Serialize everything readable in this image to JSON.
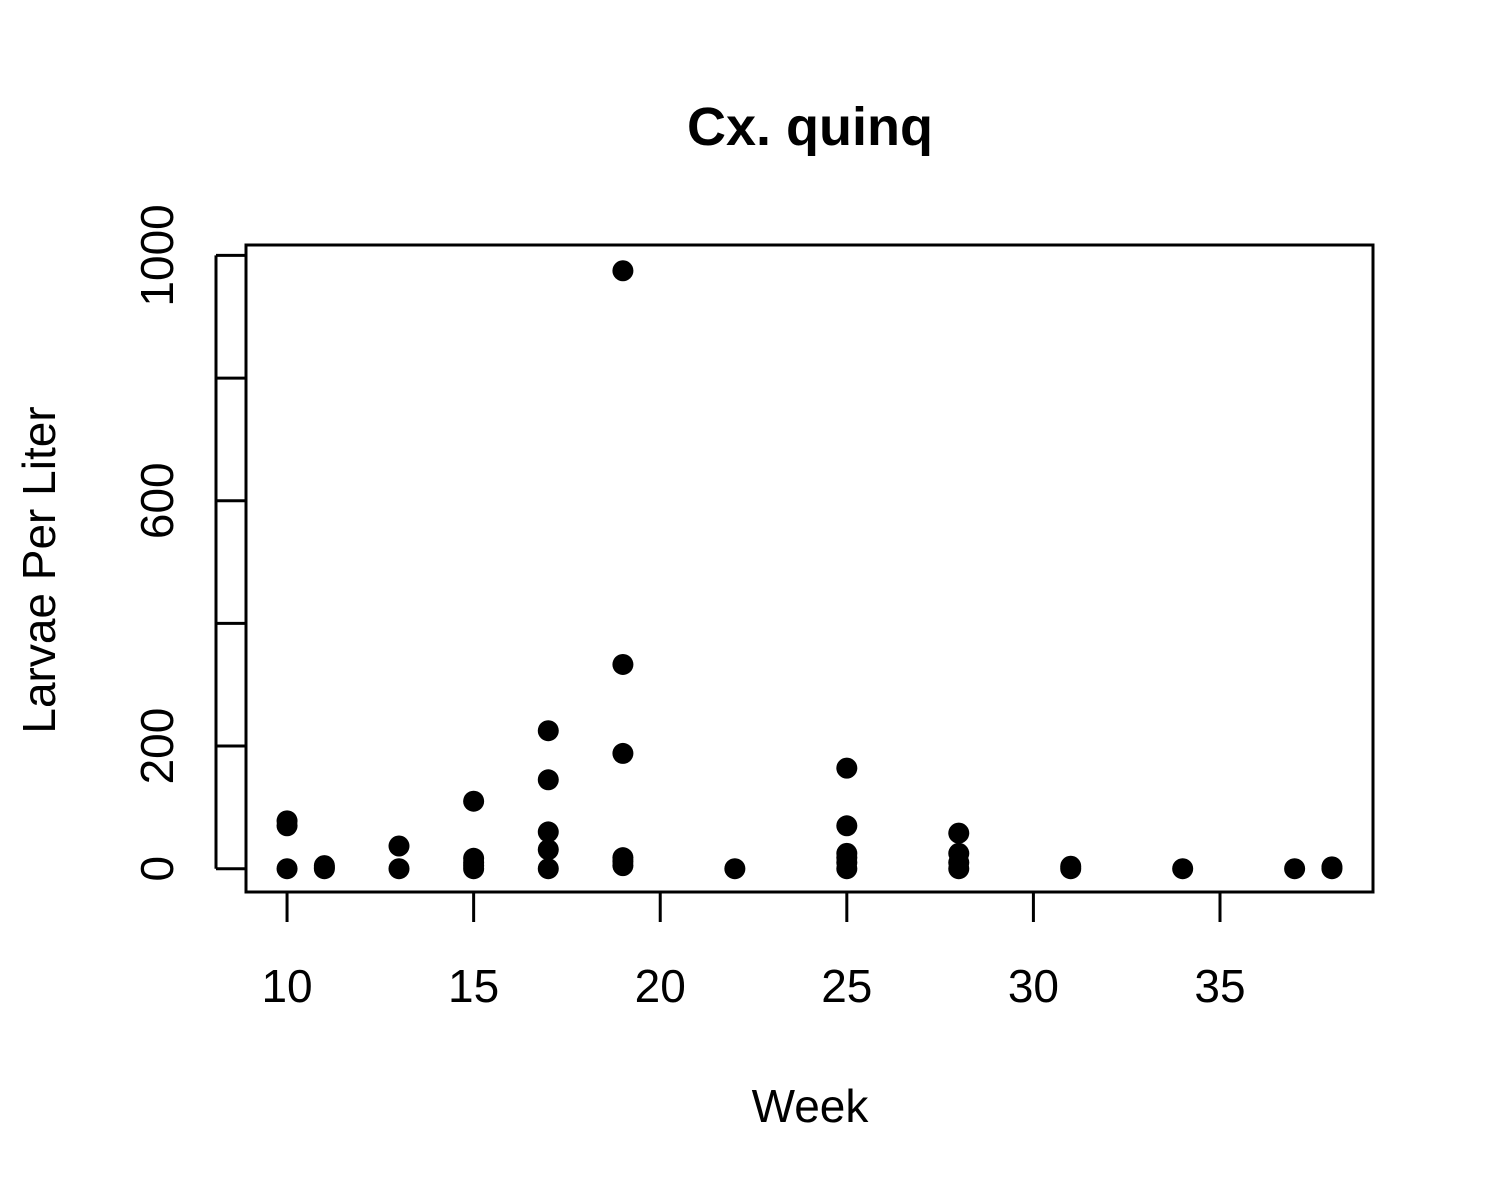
{
  "chart_data": {
    "type": "scatter",
    "title": "Cx. quinq",
    "xlabel": "Week",
    "ylabel": "Larvae Per Liter",
    "xlim": [
      8.9,
      39.1
    ],
    "ylim": [
      -38,
      1017
    ],
    "x_ticks": [
      10,
      15,
      20,
      25,
      30,
      35
    ],
    "y_ticks": [
      0,
      200,
      400,
      600,
      800,
      1000
    ],
    "y_tick_labels": [
      "0",
      "200",
      "",
      "600",
      "",
      "1000"
    ],
    "grid": false,
    "legend": "none",
    "point_color": "#000000",
    "points": [
      {
        "x": 10,
        "y": 0
      },
      {
        "x": 10,
        "y": 70
      },
      {
        "x": 10,
        "y": 78
      },
      {
        "x": 11,
        "y": 0
      },
      {
        "x": 11,
        "y": 2
      },
      {
        "x": 11,
        "y": 5
      },
      {
        "x": 13,
        "y": 0
      },
      {
        "x": 13,
        "y": 37
      },
      {
        "x": 15,
        "y": 0
      },
      {
        "x": 15,
        "y": 5
      },
      {
        "x": 15,
        "y": 10
      },
      {
        "x": 15,
        "y": 17
      },
      {
        "x": 15,
        "y": 110
      },
      {
        "x": 17,
        "y": 0
      },
      {
        "x": 17,
        "y": 31
      },
      {
        "x": 17,
        "y": 60
      },
      {
        "x": 17,
        "y": 145
      },
      {
        "x": 17,
        "y": 225
      },
      {
        "x": 19,
        "y": 5
      },
      {
        "x": 19,
        "y": 12
      },
      {
        "x": 19,
        "y": 18
      },
      {
        "x": 19,
        "y": 188
      },
      {
        "x": 19,
        "y": 333
      },
      {
        "x": 19,
        "y": 975
      },
      {
        "x": 22,
        "y": 0
      },
      {
        "x": 25,
        "y": 0
      },
      {
        "x": 25,
        "y": 10
      },
      {
        "x": 25,
        "y": 18
      },
      {
        "x": 25,
        "y": 25
      },
      {
        "x": 25,
        "y": 70
      },
      {
        "x": 25,
        "y": 164
      },
      {
        "x": 28,
        "y": 0
      },
      {
        "x": 28,
        "y": 10
      },
      {
        "x": 28,
        "y": 25
      },
      {
        "x": 28,
        "y": 58
      },
      {
        "x": 31,
        "y": 0
      },
      {
        "x": 31,
        "y": 4
      },
      {
        "x": 34,
        "y": 0
      },
      {
        "x": 37,
        "y": 0
      },
      {
        "x": 38,
        "y": 0
      },
      {
        "x": 38,
        "y": 3
      }
    ]
  }
}
